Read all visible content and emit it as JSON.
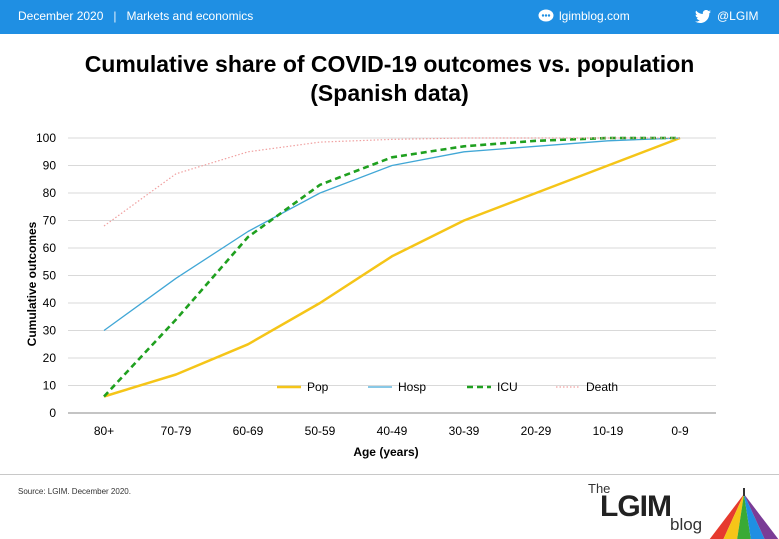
{
  "header": {
    "date": "December 2020",
    "separator": "|",
    "section": "Markets and economics",
    "blog": "lgimblog.com",
    "twitter": "@LGIM"
  },
  "title_line1": "Cumulative share of COVID-19 outcomes vs. population",
  "title_line2": "(Spanish data)",
  "footer": {
    "source": "Source: LGIM.  December 2020.",
    "logo_the": "The",
    "logo_lgim": "LGIM",
    "logo_blog": "blog"
  },
  "colors": {
    "header": "#1f8fe3",
    "pop": "#f5c518",
    "hosp": "#41a7d6",
    "icu": "#1fa01f",
    "death": "#f0a0a0",
    "grid": "#d9d9d9"
  },
  "chart_data": {
    "type": "line",
    "xlabel": "Age (years)",
    "ylabel": "Cumulative outcomes",
    "ylim": [
      0,
      100
    ],
    "yticks": [
      0,
      10,
      20,
      30,
      40,
      50,
      60,
      70,
      80,
      90,
      100
    ],
    "grid": true,
    "legend_position": "bottom-right inside",
    "categories": [
      "80+",
      "70-79",
      "60-69",
      "50-59",
      "40-49",
      "30-39",
      "20-29",
      "10-19",
      "0-9"
    ],
    "series": [
      {
        "name": "Pop",
        "color": "#f5c518",
        "style": "solid",
        "values": [
          6,
          14,
          25,
          40,
          57,
          70,
          80,
          90,
          100
        ]
      },
      {
        "name": "Hosp",
        "color": "#41a7d6",
        "style": "solid",
        "values": [
          30,
          49,
          66,
          80,
          90,
          95,
          97,
          99,
          100
        ]
      },
      {
        "name": "ICU",
        "color": "#1fa01f",
        "style": "dashed",
        "values": [
          6,
          34,
          64,
          83,
          93,
          97,
          99,
          100,
          100
        ]
      },
      {
        "name": "Death",
        "color": "#f0a0a0",
        "style": "dotted",
        "values": [
          68,
          87,
          95,
          98.5,
          99.5,
          100,
          100,
          100,
          100
        ]
      }
    ]
  }
}
